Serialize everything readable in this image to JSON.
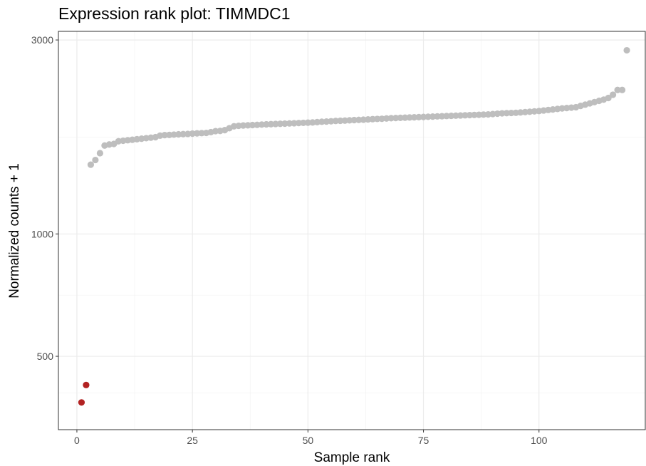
{
  "chart_data": {
    "type": "scatter",
    "title": "Expression rank plot: TIMMDC1",
    "xlabel": "Sample rank",
    "ylabel": "Normalized counts + 1",
    "y_scale": "log",
    "xlim": [
      -4,
      123
    ],
    "ylim": [
      330,
      3150
    ],
    "x_ticks": [
      0,
      25,
      50,
      75,
      100
    ],
    "x_tick_labels": [
      "0",
      "25",
      "50",
      "75",
      "100"
    ],
    "y_ticks": [
      500,
      1000,
      3000
    ],
    "y_tick_labels": [
      "500",
      "1000",
      "3000"
    ],
    "grid": true,
    "colors": {
      "highlight": "#b22222",
      "normal": "#bebebe"
    },
    "x": [
      1,
      2,
      3,
      4,
      5,
      6,
      7,
      8,
      9,
      10,
      11,
      12,
      13,
      14,
      15,
      16,
      17,
      18,
      19,
      20,
      21,
      22,
      23,
      24,
      25,
      26,
      27,
      28,
      29,
      30,
      31,
      32,
      33,
      34,
      35,
      36,
      37,
      38,
      39,
      40,
      41,
      42,
      43,
      44,
      45,
      46,
      47,
      48,
      49,
      50,
      51,
      52,
      53,
      54,
      55,
      56,
      57,
      58,
      59,
      60,
      61,
      62,
      63,
      64,
      65,
      66,
      67,
      68,
      69,
      70,
      71,
      72,
      73,
      74,
      75,
      76,
      77,
      78,
      79,
      80,
      81,
      82,
      83,
      84,
      85,
      86,
      87,
      88,
      89,
      90,
      91,
      92,
      93,
      94,
      95,
      96,
      97,
      98,
      99,
      100,
      101,
      102,
      103,
      104,
      105,
      106,
      107,
      108,
      109,
      110,
      111,
      112,
      113,
      114,
      115,
      116,
      117,
      118,
      119
    ],
    "y": [
      385,
      425,
      1480,
      1520,
      1580,
      1650,
      1660,
      1665,
      1690,
      1695,
      1700,
      1705,
      1710,
      1715,
      1720,
      1725,
      1730,
      1745,
      1750,
      1752,
      1755,
      1758,
      1760,
      1762,
      1765,
      1768,
      1770,
      1772,
      1780,
      1790,
      1792,
      1800,
      1820,
      1840,
      1845,
      1848,
      1850,
      1853,
      1855,
      1858,
      1860,
      1862,
      1864,
      1866,
      1868,
      1870,
      1872,
      1874,
      1876,
      1878,
      1880,
      1884,
      1888,
      1890,
      1893,
      1896,
      1898,
      1900,
      1903,
      1906,
      1908,
      1910,
      1913,
      1916,
      1918,
      1920,
      1923,
      1926,
      1928,
      1930,
      1932,
      1934,
      1936,
      1938,
      1940,
      1942,
      1944,
      1946,
      1948,
      1950,
      1952,
      1954,
      1956,
      1958,
      1960,
      1962,
      1964,
      1966,
      1968,
      1972,
      1976,
      1980,
      1982,
      1984,
      1986,
      1990,
      1994,
      1998,
      2002,
      2006,
      2012,
      2018,
      2024,
      2030,
      2036,
      2040,
      2045,
      2050,
      2065,
      2080,
      2095,
      2110,
      2125,
      2140,
      2160,
      2200,
      2260,
      2260,
      2830
    ],
    "highlight_count": 2
  }
}
